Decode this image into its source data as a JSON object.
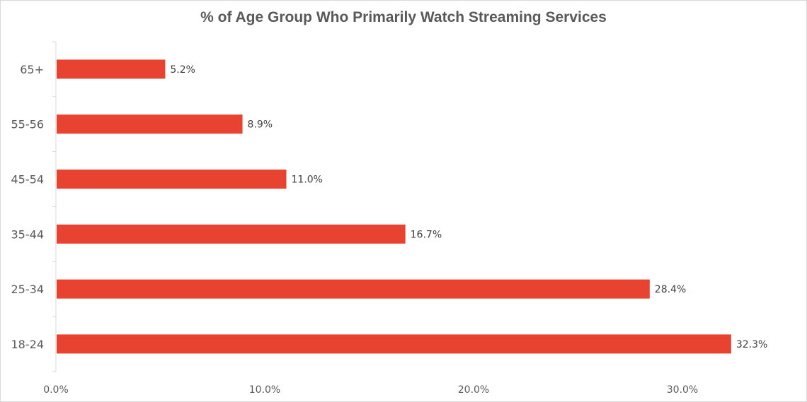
{
  "chart_data": {
    "type": "bar",
    "orientation": "horizontal",
    "title": "% of Age Group Who Primarily Watch Streaming Services",
    "categories": [
      "65+",
      "55-56",
      "45-54",
      "35-44",
      "25-34",
      "18-24"
    ],
    "values": [
      5.2,
      8.9,
      11.0,
      16.7,
      28.4,
      32.3
    ],
    "value_labels": [
      "5.2%",
      "8.9%",
      "11.0%",
      "16.7%",
      "28.4%",
      "32.3%"
    ],
    "x_ticks": [
      0,
      10,
      20,
      30
    ],
    "x_tick_labels": [
      "0.0%",
      "10.0%",
      "20.0%",
      "30.0%"
    ],
    "xlim": [
      0,
      35
    ],
    "grid": false,
    "legend": "none",
    "bar_color": "#e84331",
    "axis_color": "#d9d9d9"
  }
}
